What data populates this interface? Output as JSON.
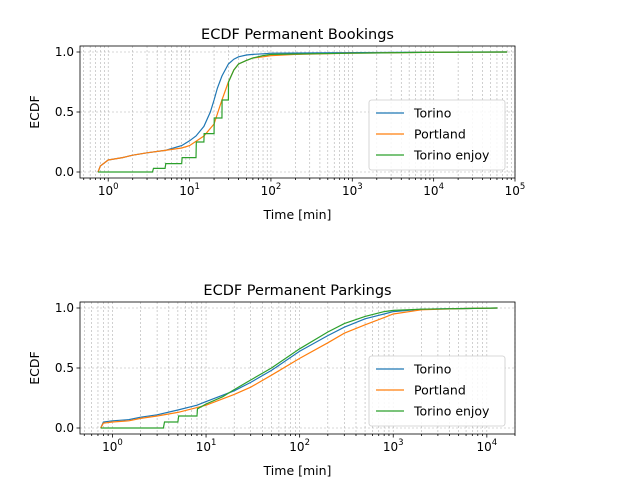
{
  "chart_data": [
    {
      "type": "line",
      "title": "ECDF Permanent Bookings",
      "xlabel": "Time [min]",
      "ylabel": "ECDF",
      "xscale": "log",
      "xlim": [
        0.45,
        100000
      ],
      "ylim": [
        -0.05,
        1.05
      ],
      "xticks": [
        1,
        10,
        100,
        1000,
        10000,
        100000
      ],
      "xtick_labels": [
        "10^0",
        "10^1",
        "10^2",
        "10^3",
        "10^4",
        "10^5"
      ],
      "yticks": [
        0.0,
        0.5,
        1.0
      ],
      "ytick_labels": [
        "0.0",
        "0.5",
        "1.0"
      ],
      "grid": true,
      "legend_position": "lower-right",
      "series": [
        {
          "name": "Torino",
          "color": "#1f77b4",
          "x": [
            0.75,
            0.8,
            1,
            1.5,
            2,
            3,
            5,
            8,
            10,
            12,
            15,
            18,
            20,
            22,
            25,
            30,
            35,
            40,
            50,
            60,
            80,
            100,
            1000,
            10000,
            80000
          ],
          "y": [
            0.0,
            0.05,
            0.1,
            0.12,
            0.14,
            0.16,
            0.18,
            0.22,
            0.26,
            0.3,
            0.38,
            0.5,
            0.6,
            0.7,
            0.8,
            0.9,
            0.94,
            0.96,
            0.975,
            0.98,
            0.985,
            0.99,
            0.995,
            0.999,
            1.0
          ]
        },
        {
          "name": "Portland",
          "color": "#ff7f0e",
          "x": [
            0.75,
            0.8,
            1,
            1.5,
            2,
            3,
            5,
            8,
            10,
            15,
            20,
            25,
            30,
            35,
            40,
            50,
            60,
            80,
            100,
            200,
            1000,
            10000,
            80000
          ],
          "y": [
            0.0,
            0.05,
            0.1,
            0.12,
            0.14,
            0.16,
            0.18,
            0.2,
            0.22,
            0.3,
            0.4,
            0.6,
            0.75,
            0.85,
            0.9,
            0.93,
            0.95,
            0.96,
            0.97,
            0.98,
            0.99,
            0.998,
            1.0
          ]
        },
        {
          "name": "Torino enjoy",
          "color": "#2ca02c",
          "x": [
            0.75,
            3.5,
            3.6,
            5,
            5.1,
            8,
            8.1,
            12,
            12.1,
            15,
            15.1,
            20,
            20.1,
            25,
            25.1,
            30,
            30.1,
            35,
            40,
            50,
            60,
            80,
            100,
            1000,
            10000,
            80000
          ],
          "y": [
            0.0,
            0.0,
            0.03,
            0.03,
            0.07,
            0.07,
            0.12,
            0.12,
            0.25,
            0.25,
            0.32,
            0.32,
            0.45,
            0.45,
            0.6,
            0.6,
            0.75,
            0.85,
            0.9,
            0.93,
            0.95,
            0.97,
            0.98,
            0.99,
            0.998,
            1.0
          ]
        }
      ]
    },
    {
      "type": "line",
      "title": "ECDF Permanent Parkings",
      "xlabel": "Time [min]",
      "ylabel": "ECDF",
      "xscale": "log",
      "xlim": [
        0.45,
        20000
      ],
      "ylim": [
        -0.05,
        1.05
      ],
      "xticks": [
        1,
        10,
        100,
        1000,
        10000
      ],
      "xtick_labels": [
        "10^0",
        "10^1",
        "10^2",
        "10^3",
        "10^4"
      ],
      "yticks": [
        0.0,
        0.5,
        1.0
      ],
      "ytick_labels": [
        "0.0",
        "0.5",
        "1.0"
      ],
      "grid": true,
      "legend_position": "lower-right",
      "series": [
        {
          "name": "Torino",
          "color": "#1f77b4",
          "x": [
            0.75,
            0.8,
            1,
            1.5,
            2,
            3,
            5,
            8,
            10,
            20,
            30,
            50,
            100,
            200,
            300,
            500,
            800,
            1000,
            2000,
            5000,
            13000
          ],
          "y": [
            0.0,
            0.05,
            0.06,
            0.07,
            0.09,
            0.11,
            0.15,
            0.19,
            0.22,
            0.31,
            0.38,
            0.48,
            0.64,
            0.77,
            0.84,
            0.91,
            0.95,
            0.97,
            0.99,
            0.995,
            1.0
          ]
        },
        {
          "name": "Portland",
          "color": "#ff7f0e",
          "x": [
            0.75,
            0.8,
            1,
            1.5,
            2,
            3,
            5,
            8,
            10,
            20,
            30,
            50,
            100,
            200,
            300,
            500,
            800,
            1000,
            2000,
            5000,
            13000
          ],
          "y": [
            0.0,
            0.04,
            0.05,
            0.06,
            0.08,
            0.1,
            0.13,
            0.17,
            0.19,
            0.28,
            0.34,
            0.44,
            0.58,
            0.71,
            0.79,
            0.86,
            0.92,
            0.95,
            0.985,
            0.995,
            1.0
          ]
        },
        {
          "name": "Torino enjoy",
          "color": "#2ca02c",
          "x": [
            0.75,
            3.5,
            3.6,
            5,
            5.1,
            8,
            8.1,
            10,
            15,
            20,
            30,
            50,
            100,
            200,
            300,
            500,
            800,
            1000,
            2000,
            5000,
            13000
          ],
          "y": [
            0.0,
            0.0,
            0.05,
            0.05,
            0.1,
            0.1,
            0.16,
            0.2,
            0.26,
            0.32,
            0.4,
            0.5,
            0.66,
            0.8,
            0.87,
            0.93,
            0.97,
            0.98,
            0.99,
            0.995,
            1.0
          ]
        }
      ]
    }
  ]
}
